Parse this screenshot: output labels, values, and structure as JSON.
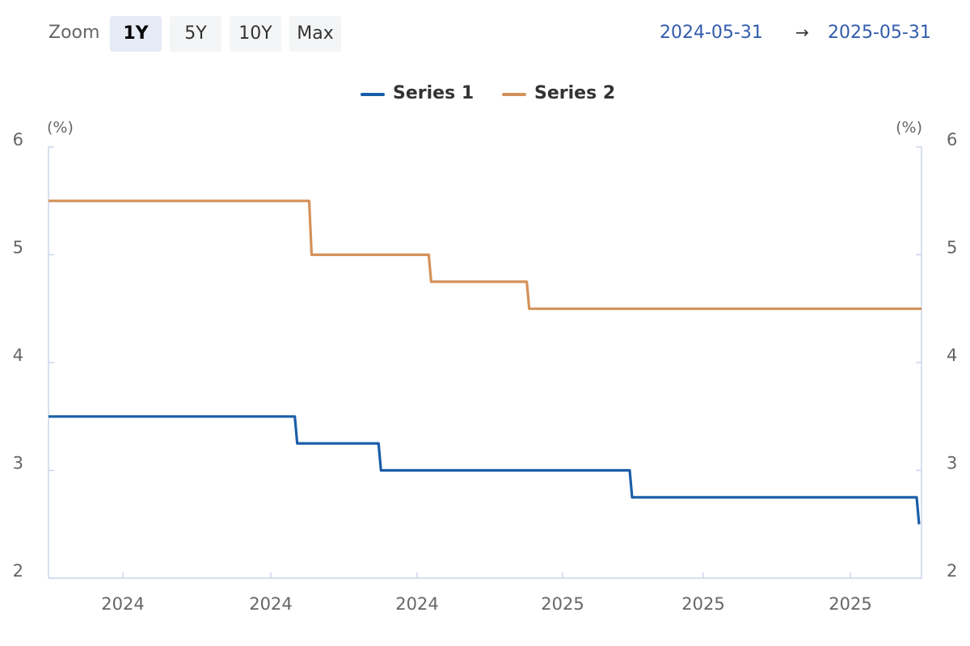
{
  "toolbar": {
    "zoom_label": "Zoom",
    "buttons": [
      {
        "label": "1Y",
        "active": true
      },
      {
        "label": "5Y",
        "active": false
      },
      {
        "label": "10Y",
        "active": false
      },
      {
        "label": "Max",
        "active": false
      }
    ],
    "range_from": "2024-05-31",
    "range_arrow": "→",
    "range_to": "2025-05-31"
  },
  "chart_data": {
    "type": "line",
    "step": true,
    "x_range": [
      "2024-05-31",
      "2025-05-31"
    ],
    "ylim": [
      2,
      6
    ],
    "yticks": [
      2,
      3,
      4,
      5,
      6
    ],
    "y_unit_left": "(%)",
    "y_unit_right": "(%)",
    "x_tick_labels": [
      "2024",
      "2024",
      "2024",
      "2025",
      "2025",
      "2025"
    ],
    "legend_position": "top-center",
    "grid": false,
    "series": [
      {
        "name": "Series 1",
        "color": "#1a5ea8",
        "points": [
          {
            "x": "2024-05-31",
            "y": 3.5
          },
          {
            "x": "2024-09-12",
            "y": 3.25
          },
          {
            "x": "2024-10-17",
            "y": 3.0
          },
          {
            "x": "2024-12-12",
            "y": 3.0
          },
          {
            "x": "2025-01-30",
            "y": 2.75
          },
          {
            "x": "2025-03-06",
            "y": 2.75
          },
          {
            "x": "2025-04-17",
            "y": 2.75
          },
          {
            "x": "2025-05-30",
            "y": 2.5
          }
        ]
      },
      {
        "name": "Series 2",
        "color": "#d4915a",
        "points": [
          {
            "x": "2024-05-31",
            "y": 5.5
          },
          {
            "x": "2024-09-18",
            "y": 5.0
          },
          {
            "x": "2024-11-07",
            "y": 4.75
          },
          {
            "x": "2024-12-18",
            "y": 4.5
          },
          {
            "x": "2025-05-31",
            "y": 4.5
          }
        ]
      }
    ]
  }
}
